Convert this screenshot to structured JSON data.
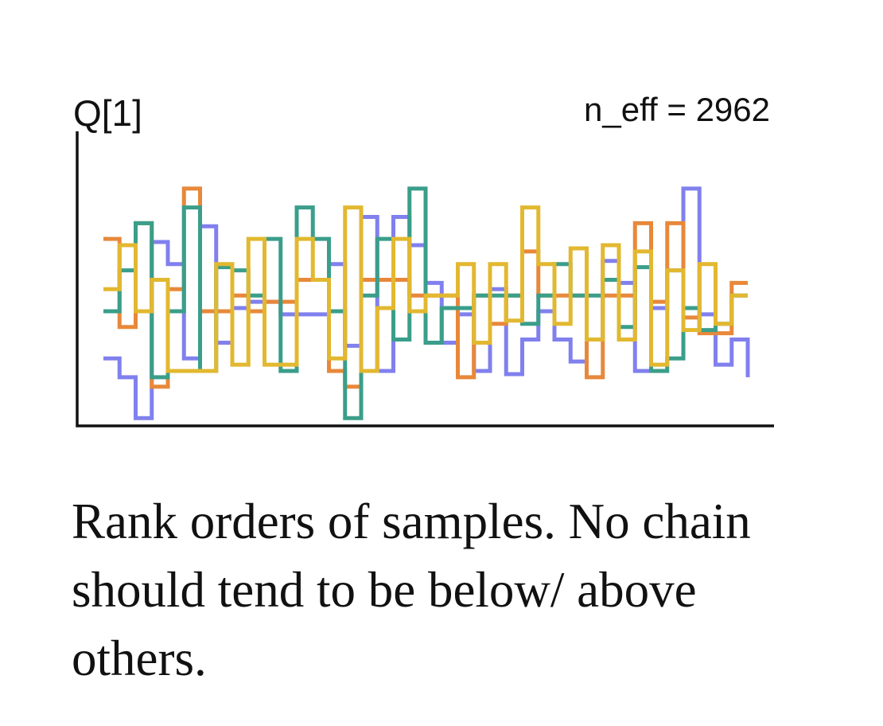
{
  "chart_data": {
    "type": "line",
    "step": true,
    "title": "Q[1]",
    "annotation": "n_eff = 2962",
    "xlabel": "",
    "ylabel": "",
    "axes": {
      "left": true,
      "bottom": true,
      "ticks": false,
      "grid": false
    },
    "x": [
      0,
      1,
      2,
      3,
      4,
      5,
      6,
      7,
      8,
      9,
      10,
      11,
      12,
      13,
      14,
      15,
      16,
      17,
      18,
      19,
      20,
      21,
      22,
      23,
      24,
      25,
      26,
      27,
      28,
      29,
      30,
      31,
      32,
      33,
      34,
      35,
      36,
      37,
      38,
      39,
      40
    ],
    "ylim": [
      0,
      10
    ],
    "series": [
      {
        "color": "#8080ee",
        "values": [
          2.4,
          1.8,
          0.5,
          6.1,
          5.4,
          2.4,
          6.6,
          2.9,
          4.0,
          4.2,
          4.2,
          3.8,
          3.8,
          3.8,
          5.4,
          2.8,
          6.9,
          2.0,
          6.9,
          6.0,
          4.8,
          2.9,
          3.8,
          2.0,
          4.6,
          1.9,
          3.0,
          3.9,
          3.0,
          2.3,
          3.0,
          5.5,
          4.8,
          2.0,
          4.0,
          5.2,
          7.8,
          3.8,
          2.2,
          3.0,
          1.8
        ]
      },
      {
        "color": "#e8883a",
        "values": [
          6.2,
          3.4,
          6.7,
          1.5,
          4.6,
          7.8,
          3.9,
          3.9,
          4.4,
          3.9,
          4.2,
          4.2,
          4.9,
          4.9,
          2.0,
          1.5,
          4.9,
          4.9,
          4.9,
          4.4,
          4.4,
          4.4,
          1.8,
          4.4,
          3.5,
          4.4,
          5.8,
          4.4,
          4.4,
          4.4,
          1.8,
          4.4,
          4.4,
          6.7,
          4.2,
          6.7,
          3.7,
          3.2,
          3.2,
          4.8,
          4.8
        ]
      },
      {
        "color": "#3a9e8a",
        "values": [
          3.9,
          5.2,
          6.7,
          1.8,
          3.9,
          7.2,
          2.0,
          5.3,
          5.2,
          4.4,
          6.2,
          2.0,
          7.2,
          6.2,
          3.9,
          0.5,
          4.4,
          6.2,
          3.0,
          7.8,
          2.9,
          4.0,
          4.0,
          4.4,
          4.4,
          4.4,
          3.5,
          4.4,
          5.4,
          4.4,
          4.4,
          4.9,
          3.4,
          5.3,
          2.0,
          2.4,
          4.0,
          3.3,
          3.5,
          4.4,
          4.4
        ]
      },
      {
        "color": "#e2b830",
        "values": [
          4.6,
          6.0,
          3.9,
          4.9,
          2.0,
          2.0,
          2.0,
          5.4,
          2.2,
          6.2,
          2.2,
          2.2,
          6.2,
          4.9,
          2.4,
          7.2,
          2.0,
          4.0,
          6.2,
          3.9,
          4.4,
          4.4,
          5.4,
          2.9,
          5.4,
          3.6,
          7.2,
          5.4,
          3.5,
          5.9,
          3.0,
          6.0,
          3.0,
          5.8,
          2.2,
          5.2,
          3.3,
          5.4,
          3.5,
          4.4,
          4.4
        ]
      }
    ]
  },
  "caption": "Rank orders of samples. No chain should tend to be below/ above others."
}
